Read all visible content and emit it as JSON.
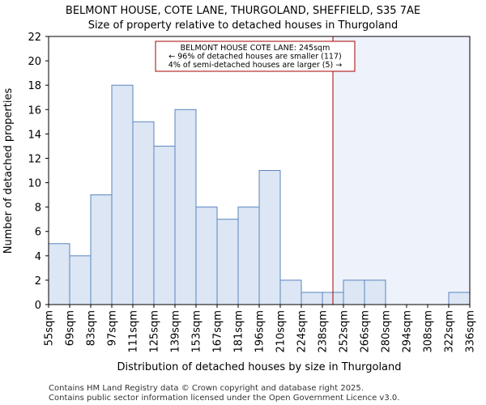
{
  "chart_data": {
    "type": "bar",
    "title": "BELMONT HOUSE, COTE LANE, THURGOLAND, SHEFFIELD, S35 7AE",
    "subtitle": "Size of property relative to detached houses in Thurgoland",
    "xlabel": "Distribution of detached houses by size in Thurgoland",
    "ylabel": "Number of detached properties",
    "bin_edges": [
      55,
      69,
      83,
      97,
      111,
      125,
      139,
      153,
      167,
      181,
      196,
      210,
      224,
      238,
      252,
      266,
      280,
      294,
      308,
      322,
      336
    ],
    "tick_labels": [
      "55sqm",
      "69sqm",
      "83sqm",
      "97sqm",
      "111sqm",
      "125sqm",
      "139sqm",
      "153sqm",
      "167sqm",
      "181sqm",
      "196sqm",
      "210sqm",
      "224sqm",
      "238sqm",
      "252sqm",
      "266sqm",
      "280sqm",
      "294sqm",
      "308sqm",
      "322sqm",
      "336sqm"
    ],
    "values": [
      5,
      4,
      9,
      18,
      15,
      13,
      16,
      8,
      7,
      8,
      11,
      2,
      1,
      1,
      2,
      2,
      0,
      0,
      0,
      1
    ],
    "ylim": [
      0,
      22
    ],
    "yticks": [
      0,
      2,
      4,
      6,
      8,
      10,
      12,
      14,
      16,
      18,
      20,
      22
    ],
    "grid": false,
    "bar_color": "#dce6f4",
    "bar_edge_color": "#5a85bf",
    "shade_color": "#eef2fa",
    "marker": {
      "value": 245,
      "color": "#aa0000",
      "lines": [
        "BELMONT HOUSE COTE LANE: 245sqm",
        "← 96% of detached houses are smaller (117)",
        "4% of semi-detached houses are larger (5) →"
      ]
    }
  },
  "footer": {
    "line1": "Contains HM Land Registry data © Crown copyright and database right 2025.",
    "line2": "Contains public sector information licensed under the Open Government Licence v3.0."
  }
}
